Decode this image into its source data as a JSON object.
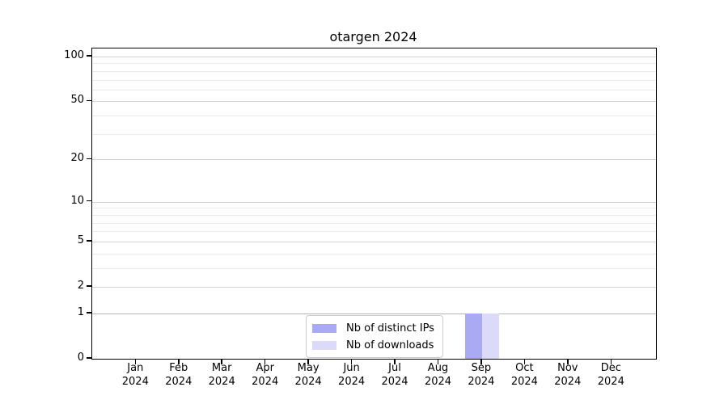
{
  "chart_data": {
    "type": "bar",
    "title": "otargen 2024",
    "categories": [
      "Jan 2024",
      "Feb 2024",
      "Mar 2024",
      "Apr 2024",
      "May 2024",
      "Jun 2024",
      "Jul 2024",
      "Aug 2024",
      "Sep 2024",
      "Oct 2024",
      "Nov 2024",
      "Dec 2024"
    ],
    "series": [
      {
        "name": "Nb of distinct IPs",
        "color": "#a9a9f4",
        "values": [
          0,
          0,
          0,
          0,
          0,
          0,
          0,
          0,
          1,
          0,
          0,
          0
        ]
      },
      {
        "name": "Nb of downloads",
        "color": "#dbdbf9",
        "values": [
          0,
          0,
          0,
          0,
          0,
          0,
          0,
          0,
          1,
          0,
          0,
          0
        ]
      }
    ],
    "yscale": "log1p",
    "ylim": [
      0,
      113
    ],
    "y_major_ticks": [
      0,
      1,
      2,
      5,
      10,
      20,
      50,
      100
    ],
    "y_minor_gridlines": [
      3,
      4,
      6,
      7,
      8,
      9,
      30,
      40,
      60,
      70,
      80,
      90
    ],
    "grid": "horizontal",
    "legend_position": "lower center",
    "colors": {
      "major_grid": "#d2d2d2",
      "minor_grid": "#eaeaea",
      "baseline_one_grid": "#b5b5b5",
      "axis": "#000000"
    }
  }
}
